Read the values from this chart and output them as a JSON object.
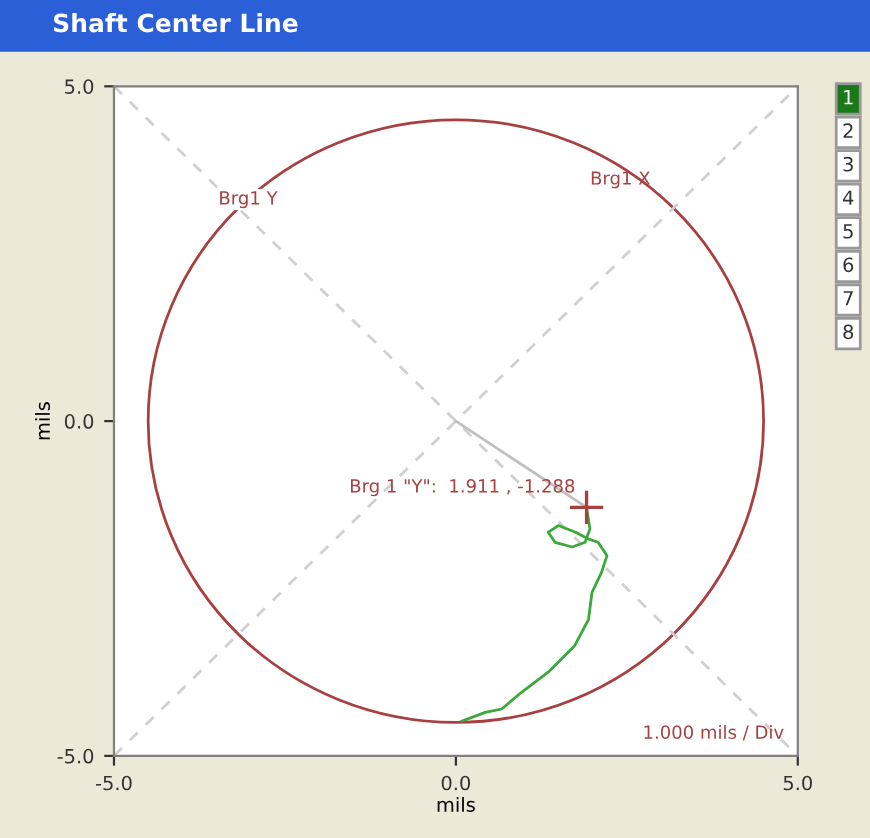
{
  "chart_data": {
    "type": "line",
    "title": "Shaft Center Line",
    "xlabel": "mils",
    "ylabel": "mils",
    "xlim": [
      -5.0,
      5.0
    ],
    "ylim": [
      -5.0,
      5.0
    ],
    "xticks": [
      {
        "value": -5.0,
        "label": "-5.0"
      },
      {
        "value": 0.0,
        "label": "0.0"
      },
      {
        "value": 5.0,
        "label": "5.0"
      }
    ],
    "yticks": [
      {
        "value": -5.0,
        "label": "-5.0"
      },
      {
        "value": 0.0,
        "label": "0.0"
      },
      {
        "value": 5.0,
        "label": "5.0"
      }
    ],
    "series": [
      {
        "color": "#d0d0d0",
        "line_style": "dashed",
        "x": [
          -5.0,
          5.0
        ],
        "values": [
          5.0,
          -5.0
        ]
      },
      {
        "color": "#d0d0d0",
        "line_style": "dashed",
        "x": [
          -5.0,
          5.0
        ],
        "values": [
          -5.0,
          5.0
        ]
      },
      {
        "color": "#c0c0c0",
        "line_style": "solid",
        "x": [
          0.0,
          1.911
        ],
        "values": [
          0.0,
          -1.288
        ]
      },
      {
        "color": "#3aa83a",
        "line_style": "solid",
        "x": [
          0.09,
          0.43,
          0.67,
          0.96,
          1.35,
          1.74,
          1.94,
          1.99,
          2.13,
          2.21,
          2.08,
          1.94,
          1.75,
          1.5,
          1.35,
          1.45,
          1.7,
          1.89,
          1.96,
          1.911
        ],
        "values": [
          -4.48,
          -4.35,
          -4.3,
          -4.05,
          -3.75,
          -3.35,
          -2.96,
          -2.56,
          -2.26,
          -2.01,
          -1.81,
          -1.76,
          -1.66,
          -1.56,
          -1.66,
          -1.81,
          -1.88,
          -1.81,
          -1.61,
          -1.288
        ]
      },
      {
        "type": "scatter",
        "color": "#a84040",
        "marker": "cross",
        "x": [
          1.911
        ],
        "values": [
          -1.288
        ]
      }
    ],
    "annotations": [
      {
        "text": "Brg1 Y",
        "x": -3.04,
        "y": 3.31
      },
      {
        "text": "Brg1 X",
        "x": 3.01,
        "y": 3.31
      },
      {
        "text": "Brg 1 \"Y\":  1.911 , -1.288",
        "x": 1.911,
        "y": -1.288
      },
      "1.000 mils / Div",
      "1",
      "2",
      "3",
      "4",
      "5",
      "6",
      "7",
      "8"
    ]
  }
}
